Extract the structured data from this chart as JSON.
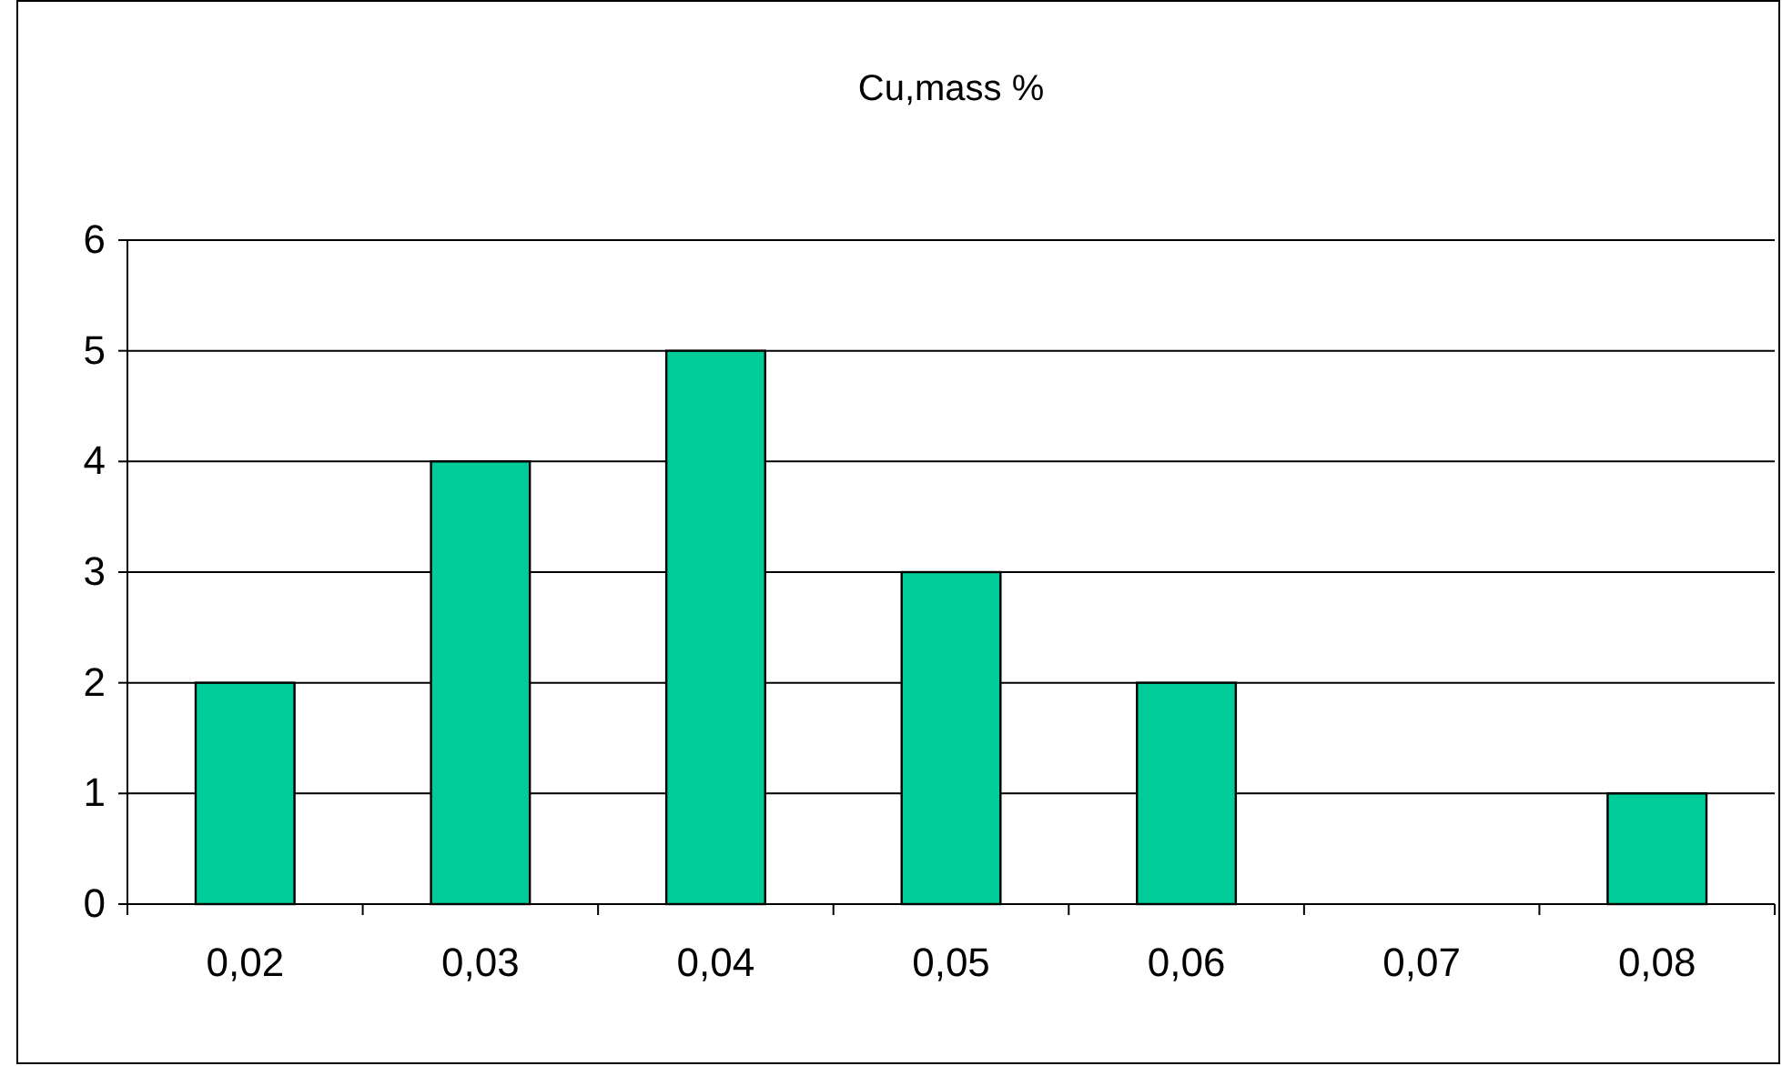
{
  "chart_data": {
    "type": "bar",
    "title": "Cu,mass %",
    "categories": [
      "0,02",
      "0,03",
      "0,04",
      "0,05",
      "0,06",
      "0,07",
      "0,08"
    ],
    "values": [
      2,
      4,
      5,
      3,
      2,
      0,
      1
    ],
    "color": "#00cc99",
    "ylim": [
      0,
      6
    ],
    "yticks": [
      0,
      1,
      2,
      3,
      4,
      5,
      6
    ],
    "grid": "y"
  }
}
